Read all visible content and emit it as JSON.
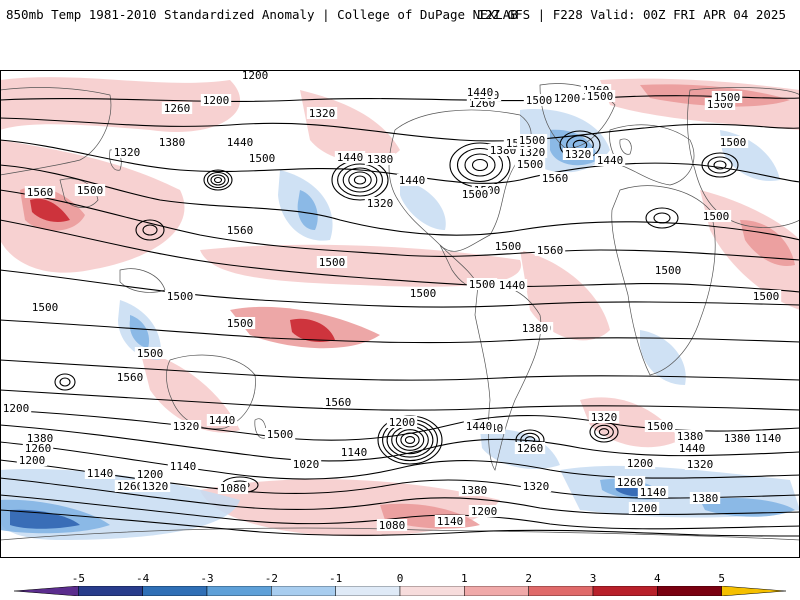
{
  "header": {
    "left": "850mb Temp 1981-2010 Standardized Anomaly | College of DuPage NEXLAB",
    "right": "12Z GFS | F228 Valid: 00Z FRI APR 04 2025"
  },
  "colorbar": {
    "labels": [
      "-5",
      "-4",
      "-3",
      "-2",
      "-1",
      "0",
      "1",
      "2",
      "3",
      "4",
      "5"
    ],
    "colors": [
      "#5b2d8e",
      "#283c8c",
      "#2f6fb6",
      "#5ea0d8",
      "#a8cdef",
      "#dfeaf7",
      "#f7dcdc",
      "#f0a9a9",
      "#e06a6a",
      "#b8202a",
      "#7a0010",
      "#f5c000"
    ]
  },
  "map": {
    "colors": {
      "land": "#ffffff",
      "ocean": "#ffffff",
      "coast": "#555555",
      "contour": "#000000",
      "warm_light": "#f6c9c9",
      "warm_mid": "#ea9898",
      "warm_strong": "#c8202a",
      "cold_light": "#c7dcf2",
      "cold_mid": "#7fb2e3",
      "cold_strong": "#2a5fae"
    },
    "contour_labels": [
      "1200",
      "1260",
      "1200",
      "1320",
      "1260",
      "1320",
      "1380",
      "1440",
      "1500",
      "1440",
      "1560",
      "1500",
      "1500",
      "1320",
      "1380",
      "1560",
      "1440",
      "1500",
      "1500",
      "1560",
      "1500",
      "1500",
      "1500",
      "1500",
      "1500",
      "1500",
      "1500",
      "1500",
      "1560",
      "1560",
      "1500",
      "1440",
      "1320",
      "1380",
      "1260",
      "1200",
      "1140",
      "1260",
      "1200",
      "1320",
      "1140",
      "1080",
      "1020",
      "1140",
      "1200",
      "1380",
      "1440",
      "1380",
      "1260",
      "1200",
      "1320",
      "1080",
      "1140",
      "1200",
      "1140",
      "1200",
      "1380",
      "1320",
      "1440",
      "1500",
      "1320",
      "1440",
      "1380",
      "1260",
      "1140",
      "1200",
      "1260",
      "1200",
      "1260",
      "1320",
      "1380",
      "1500",
      "1560",
      "1440",
      "1500",
      "1500",
      "1500",
      "1500",
      "1500",
      "1440",
      "1380",
      "1320",
      "1560",
      "1500",
      "1500",
      "1500",
      "1440",
      "1500"
    ]
  }
}
